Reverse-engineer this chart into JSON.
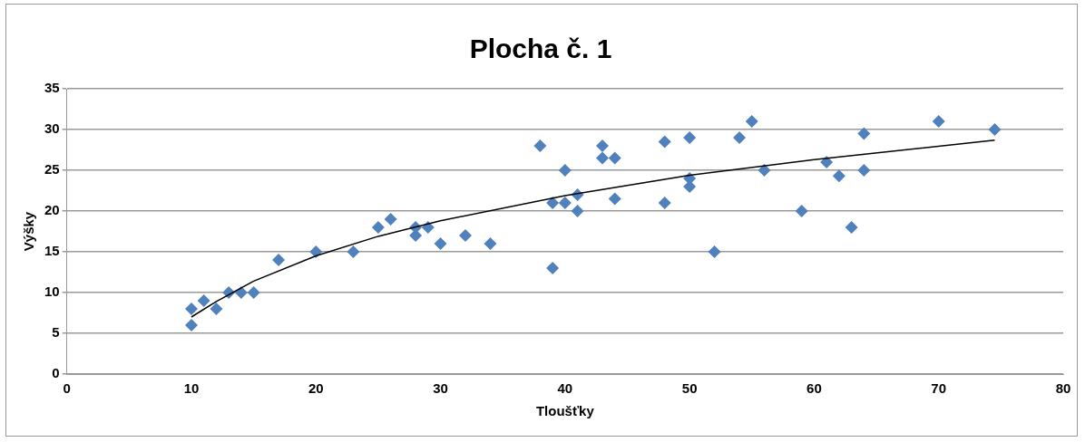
{
  "chart_data": {
    "type": "scatter",
    "title": "Plocha č. 1",
    "xlabel": "Tloušťky",
    "ylabel": "Výšky",
    "xlim": [
      0,
      80
    ],
    "xticks": [
      0,
      10,
      20,
      30,
      40,
      50,
      60,
      70,
      80
    ],
    "ylim": [
      0,
      35
    ],
    "yticks": [
      0,
      5,
      10,
      15,
      20,
      25,
      30,
      35
    ],
    "grid": "y",
    "legend": false,
    "marker": "diamond",
    "series": [
      {
        "color": "#4f81bd",
        "x": [
          10,
          10,
          11,
          12,
          13,
          14,
          15,
          17,
          20,
          23,
          25,
          26,
          28,
          28,
          29,
          30,
          32,
          34,
          38,
          39,
          39,
          40,
          40,
          41,
          41,
          43,
          43,
          44,
          44,
          48,
          48,
          50,
          50,
          50,
          52,
          54,
          55,
          56,
          59,
          61,
          62,
          63,
          64,
          64,
          70,
          74.5
        ],
        "values": [
          6,
          8,
          9,
          8,
          10,
          10,
          10,
          14,
          15,
          15,
          18,
          19,
          17,
          18,
          18,
          16,
          17,
          16,
          28,
          21,
          13,
          21,
          25,
          22,
          20,
          28,
          26.5,
          26.5,
          21.5,
          28.5,
          21,
          29,
          24,
          23,
          15,
          29,
          31,
          25,
          20,
          26,
          24.3,
          18,
          29.5,
          25,
          31,
          30
        ]
      },
      {
        "type": "line",
        "color": "#000000",
        "marker": "none",
        "x": [
          10,
          12,
          15,
          20,
          25,
          30,
          40,
          50,
          60,
          74.5
        ],
        "values": [
          7,
          8.9,
          11.4,
          14.5,
          16.9,
          18.8,
          21.9,
          24.4,
          26.3,
          28.7
        ]
      }
    ]
  }
}
